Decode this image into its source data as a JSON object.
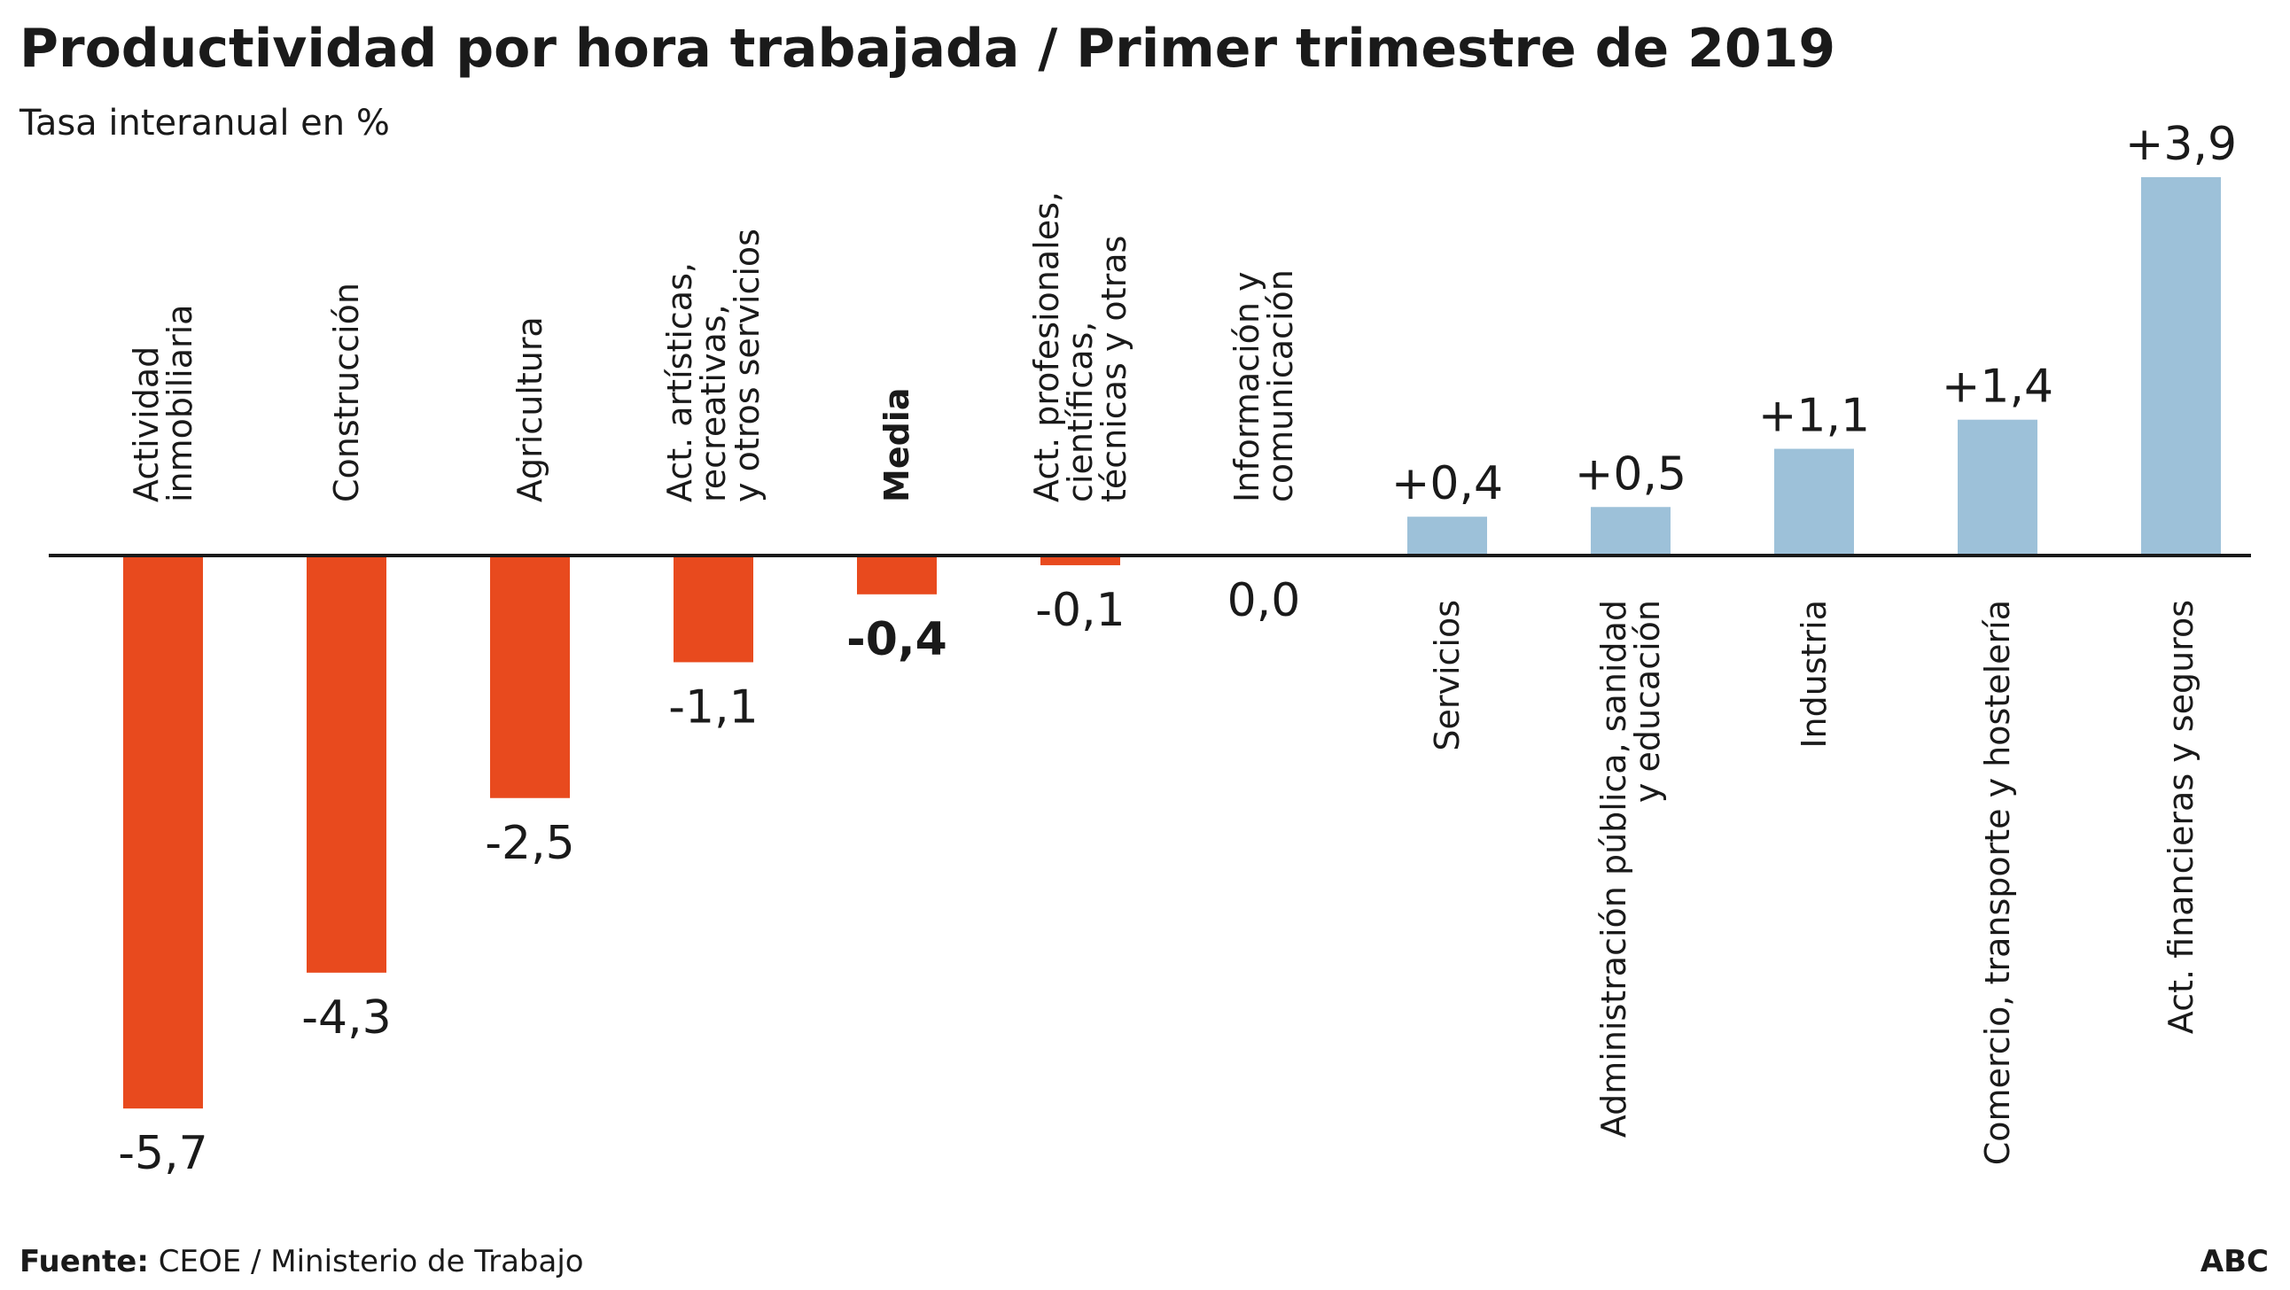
{
  "colors": {
    "negative": "#e84a1e",
    "positive": "#9dc1d9",
    "text": "#1a1a1a",
    "axis": "#1a1a1a"
  },
  "chart_data": {
    "type": "bar",
    "title": "Productividad por hora trabajada / Primer trimestre de 2019",
    "subtitle": "Tasa interanual en %",
    "categories": [
      [
        "Actividad",
        "inmobiliaria"
      ],
      [
        "Construcción"
      ],
      [
        "Agricultura"
      ],
      [
        "Act. artísticas,",
        "recreativas,",
        "y otros servicios"
      ],
      [
        "Media"
      ],
      [
        "Act. profesionales,",
        "científicas,",
        "técnicas y otras"
      ],
      [
        "Información y",
        "comunicación"
      ],
      [
        "Servicios"
      ],
      [
        "Administración pública, sanidad",
        "y educación"
      ],
      [
        "Industria"
      ],
      [
        "Comercio, transporte y hostelería"
      ],
      [
        "Act. financieras y seguros"
      ]
    ],
    "values": [
      -5.7,
      -4.3,
      -2.5,
      -1.1,
      -0.4,
      -0.1,
      0.0,
      0.4,
      0.5,
      1.1,
      1.4,
      3.9
    ],
    "value_labels": [
      "-5,7",
      "-4,3",
      "-2,5",
      "-1,1",
      "-0,4",
      "-0,1",
      "0,0",
      "+0,4",
      "+0,5",
      "+1,1",
      "+1,4",
      "+3,9"
    ],
    "highlight": [
      false,
      false,
      false,
      false,
      true,
      false,
      false,
      false,
      false,
      false,
      false,
      false
    ],
    "grid": false,
    "legend": "none"
  },
  "footer": {
    "source_label": "Fuente:",
    "source_text": " CEOE / Ministerio de Trabajo",
    "brand": "ABC"
  }
}
